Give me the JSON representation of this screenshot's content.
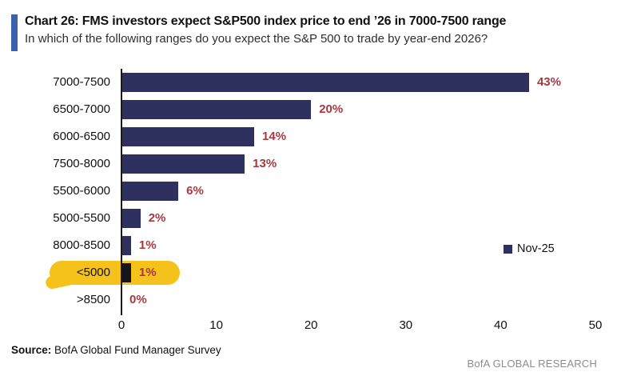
{
  "header": {
    "title": "Chart 26: FMS investors expect S&P500 index price to end ’26 in 7000-7500 range",
    "subtitle": "In which of the following ranges do you expect the S&P 500 to trade by year-end 2026?",
    "accent_color": "#3c62ae"
  },
  "chart_data": {
    "type": "bar",
    "orientation": "horizontal",
    "categories": [
      "7000-7500",
      "6500-7000",
      "6000-6500",
      "7500-8000",
      "5500-6000",
      "5000-5500",
      "8000-8500",
      "<5000",
      ">8500"
    ],
    "values": [
      43,
      20,
      14,
      13,
      6,
      2,
      1,
      1,
      0
    ],
    "value_labels": [
      "43%",
      "20%",
      "14%",
      "13%",
      "6%",
      "2%",
      "1%",
      "1%",
      "0%"
    ],
    "series": [
      {
        "name": "Nov-25",
        "values": [
          43,
          20,
          14,
          13,
          6,
          2,
          1,
          1,
          0
        ]
      }
    ],
    "xlim": [
      0,
      50
    ],
    "xticks": [
      0,
      10,
      20,
      30,
      40,
      50
    ],
    "grid": false,
    "bar_color": "#2e3160",
    "value_color": "#a8383e",
    "highlight": {
      "category": "<5000",
      "color": "#f5c21b"
    },
    "legend": {
      "label": "Nov-25",
      "position": "right",
      "marker_color": "#2e3160"
    }
  },
  "footer": {
    "source_label": "Source:",
    "source_text": " BofA Global Fund Manager Survey",
    "brand": "BofA GLOBAL RESEARCH"
  }
}
